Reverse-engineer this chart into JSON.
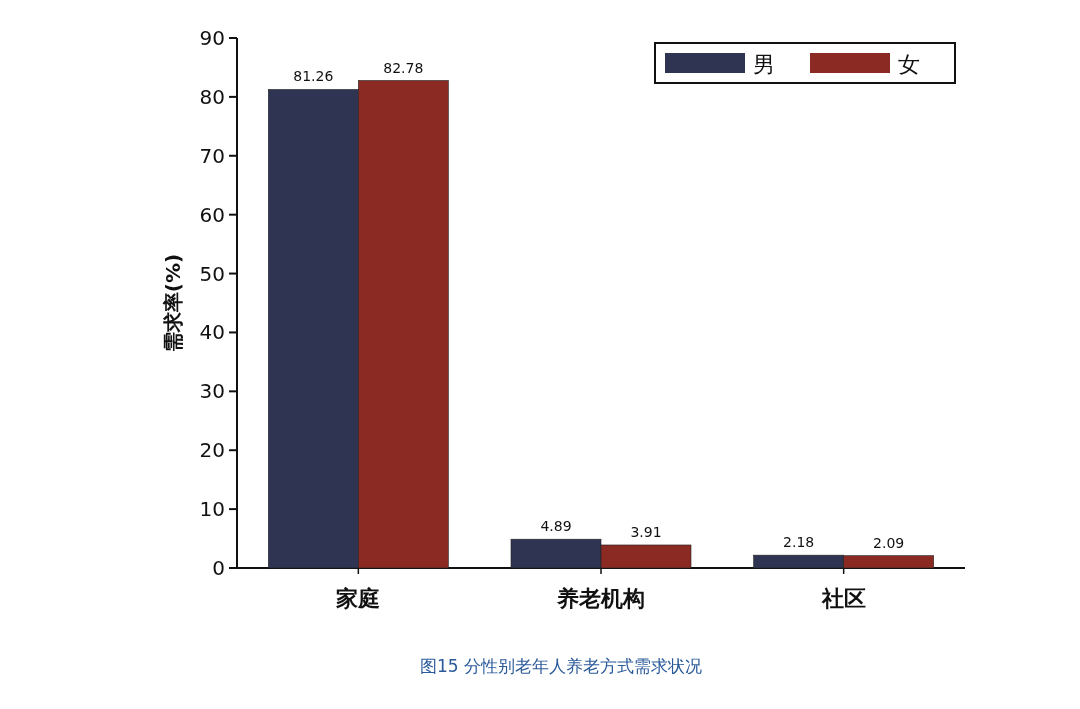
{
  "chart_data": {
    "type": "bar",
    "ylabel": "需求率(%)",
    "categories": [
      "家庭",
      "养老机构",
      "社区"
    ],
    "series": [
      {
        "name": "男",
        "color": "#2e3452",
        "values": [
          81.26,
          4.89,
          2.18
        ]
      },
      {
        "name": "女",
        "color": "#8b2a22",
        "values": [
          82.78,
          3.91,
          2.09
        ]
      }
    ],
    "ylim": [
      0,
      90
    ],
    "yticks": [
      0,
      10,
      20,
      30,
      40,
      50,
      60,
      70,
      80,
      90
    ],
    "data_labels": true,
    "legend": "top right",
    "annotations": [
      "图15 分性别老年人养老方式需求状况"
    ]
  }
}
